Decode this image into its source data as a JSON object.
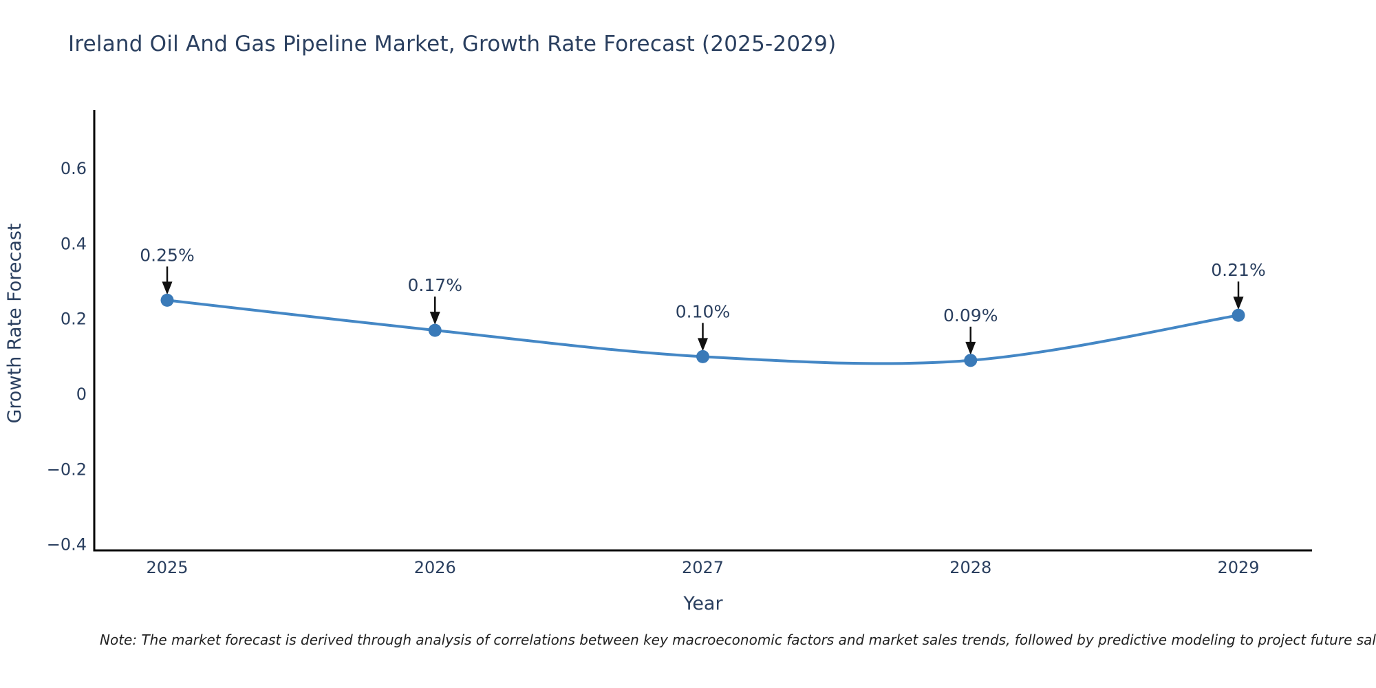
{
  "title": "Ireland Oil And Gas Pipeline Market, Growth Rate Forecast (2025-2029)",
  "note": "Note: The market forecast is derived through analysis of correlations between key macroeconomic factors and market sales trends, followed by predictive modeling to project future sales",
  "chart_data": {
    "type": "line",
    "title": "Ireland Oil And Gas Pipeline Market, Growth Rate Forecast (2025-2029)",
    "xlabel": "Year",
    "ylabel": "Growth Rate Forecast",
    "x": [
      "2025",
      "2026",
      "2027",
      "2028",
      "2029"
    ],
    "series": [
      {
        "name": "Growth Rate Forecast",
        "values": [
          0.25,
          0.17,
          0.1,
          0.09,
          0.21
        ]
      }
    ],
    "point_labels": [
      "0.25%",
      "0.17%",
      "0.10%",
      "0.09%",
      "0.21%"
    ],
    "y_ticks": [
      -0.4,
      -0.2,
      0,
      0.2,
      0.4,
      0.6
    ],
    "y_tick_labels": [
      "−0.4",
      "−0.2",
      "0",
      "0.2",
      "0.4",
      "0.6"
    ],
    "ylim": [
      -0.415,
      0.756
    ],
    "grid": false,
    "legend": "none",
    "line_shape": "spline",
    "colors": {
      "line": "#4487c5",
      "marker": "#3a7ab8",
      "axis": "#000000",
      "text": "#2a3f5f",
      "annotation_text": "#2a3f5f",
      "annotation_arrow": "#111111"
    }
  }
}
